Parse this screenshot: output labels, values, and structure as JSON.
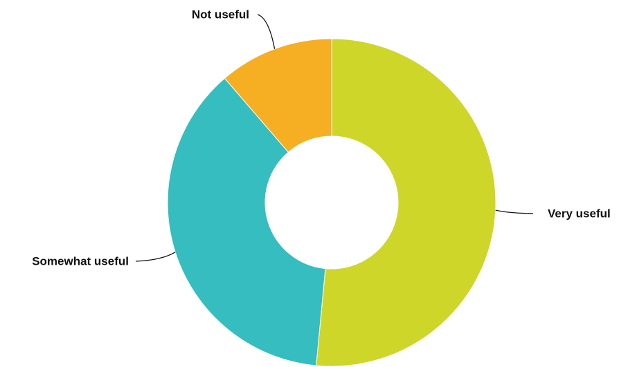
{
  "chart_data": {
    "type": "pie",
    "variant": "donut",
    "categories": [
      "Very useful",
      "Somewhat useful",
      "Not useful"
    ],
    "values": [
      51.5,
      37.2,
      11.3
    ],
    "unit": "percent",
    "legend": "none",
    "data_labels": "category names with leader lines"
  },
  "colors": {
    "Very useful": "#cfd62a",
    "Somewhat useful": "#35bdbf",
    "Not useful": "#f6ae22"
  }
}
